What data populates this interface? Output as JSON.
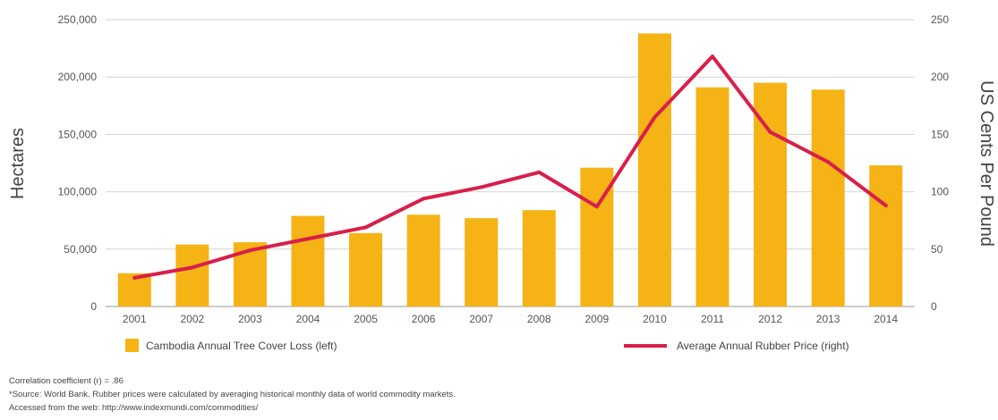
{
  "chart_data": {
    "type": "bar",
    "categories": [
      "2001",
      "2002",
      "2003",
      "2004",
      "2005",
      "2006",
      "2007",
      "2008",
      "2009",
      "2010",
      "2011",
      "2012",
      "2013",
      "2014"
    ],
    "series": [
      {
        "name": "Cambodia Annual Tree Cover Loss (left)",
        "type": "bar",
        "axis": "left",
        "values": [
          29000,
          54000,
          56000,
          79000,
          64000,
          80000,
          77000,
          84000,
          121000,
          238000,
          191000,
          195000,
          189000,
          123000
        ]
      },
      {
        "name": "Average Annual Rubber Price (right)",
        "type": "line",
        "axis": "right",
        "values": [
          25,
          34,
          49,
          59,
          69,
          94,
          104,
          117,
          87,
          165,
          218,
          152,
          126,
          88
        ]
      }
    ],
    "ylabel": "Hectares",
    "ylabel_right": "US Cents Per Pound",
    "ylim": [
      0,
      250000
    ],
    "yticks": [
      0,
      50000,
      100000,
      150000,
      200000,
      250000
    ],
    "ytick_labels": [
      "0",
      "50,000",
      "100,000",
      "150,000",
      "200,000",
      "250,000"
    ],
    "ylim_right": [
      0,
      250
    ],
    "yticks_right": [
      0,
      50,
      100,
      150,
      200,
      250
    ],
    "ytick_labels_right": [
      "0",
      "50",
      "100",
      "150",
      "200",
      "250"
    ],
    "grid": true,
    "legend": "bottom",
    "colors": {
      "bar": "#f5b316",
      "line": "#d81f4a",
      "grid": "#d4d4d4",
      "baseline": "#999999"
    }
  },
  "notes": {
    "correlation": "Correlation coefficient (r) = .86",
    "source": "*Source: World Bank. Rubber prices were calculated by averaging historical monthly data of world commodity markets.",
    "accessed": "Accessed from the web: http://www.indexmundi.com/commodities/"
  }
}
